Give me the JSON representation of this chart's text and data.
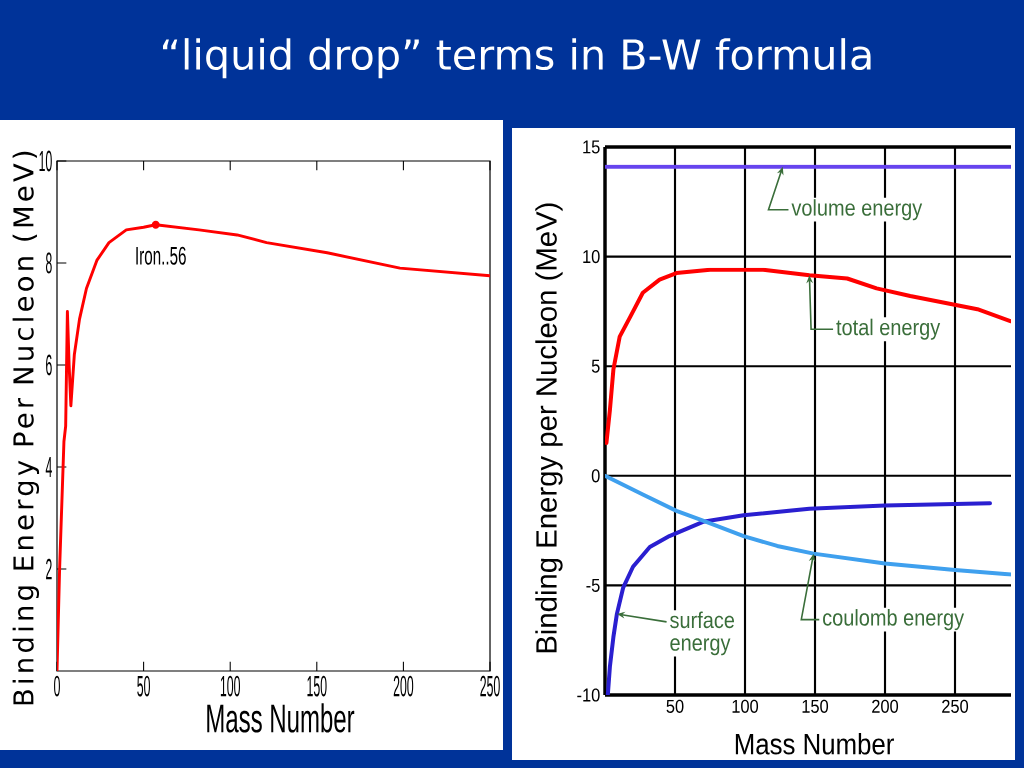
{
  "chart_data": [
    {
      "type": "line",
      "title": "“liquid drop” terms in B-W formula",
      "xlabel": "Mass Number",
      "ylabel": "Binding Energy Per Nucleon (MeV)",
      "color": "#ff0000",
      "x": [
        0,
        1.5,
        4,
        5,
        6,
        7,
        8,
        10,
        13,
        17,
        23,
        30,
        40,
        50,
        57,
        82,
        104,
        121,
        156,
        198,
        250
      ],
      "values": [
        0,
        2,
        4.5,
        4.8,
        7.05,
        6,
        5.2,
        6.2,
        6.9,
        7.5,
        8.05,
        8.4,
        8.65,
        8.7,
        8.75,
        8.65,
        8.55,
        8.4,
        8.2,
        7.9,
        7.75
      ],
      "xlim": [
        0,
        250
      ],
      "ylim": [
        0,
        10
      ],
      "xticks": [
        0,
        50,
        100,
        150,
        200,
        250
      ],
      "yticks": [
        2,
        4,
        6,
        8,
        10
      ],
      "annotations": [
        {
          "text": "Iron..56",
          "x": 57,
          "y": 8.75
        }
      ]
    },
    {
      "type": "line",
      "xlabel": "Mass Number",
      "ylabel": "Binding Energy per Nucleon (MeV)",
      "series": [
        {
          "color": "#6644ee",
          "x": [
            0,
            290
          ],
          "values": [
            14.1,
            14.1
          ]
        },
        {
          "color": "#ff0000",
          "x": [
            1,
            3.5,
            6,
            10.5,
            18,
            27,
            39,
            51,
            75,
            99,
            113,
            146,
            173,
            194,
            218,
            242,
            266,
            290
          ],
          "values": [
            1.5,
            3,
            4.85,
            6.35,
            7.25,
            8.35,
            8.95,
            9.25,
            9.4,
            9.4,
            9.4,
            9.15,
            9,
            8.55,
            8.2,
            7.9,
            7.6,
            7.05
          ]
        },
        {
          "color": "#2a1fd0",
          "x": [
            2,
            3.5,
            6,
            8.5,
            13,
            20,
            32,
            46,
            70,
            99,
            146,
            200,
            275
          ],
          "values": [
            -10,
            -8.7,
            -7.35,
            -6.3,
            -5.1,
            -4.15,
            -3.25,
            -2.75,
            -2.1,
            -1.8,
            -1.5,
            -1.35,
            -1.25
          ]
        },
        {
          "color": "#3fa0ee",
          "x": [
            0,
            27,
            51,
            70,
            99,
            123,
            149,
            200,
            250,
            290
          ],
          "values": [
            0,
            -0.85,
            -1.6,
            -2.05,
            -2.75,
            -3.2,
            -3.55,
            -4,
            -4.3,
            -4.5
          ]
        }
      ],
      "xlim": [
        0,
        290
      ],
      "ylim": [
        -10,
        15
      ],
      "xticks": [
        50,
        100,
        150,
        200,
        250
      ],
      "yticks": [
        -10,
        -5,
        0,
        5,
        10,
        15
      ],
      "grid": true,
      "annotations": [
        {
          "text": "volume energy",
          "x": 127,
          "y": 14.1
        },
        {
          "text": "total energy",
          "x": 146,
          "y": 9.15
        },
        {
          "text": "surface energy",
          "x": 8.5,
          "y": -6.3
        },
        {
          "text": "coulomb energy",
          "x": 149,
          "y": -3.55
        }
      ]
    }
  ]
}
